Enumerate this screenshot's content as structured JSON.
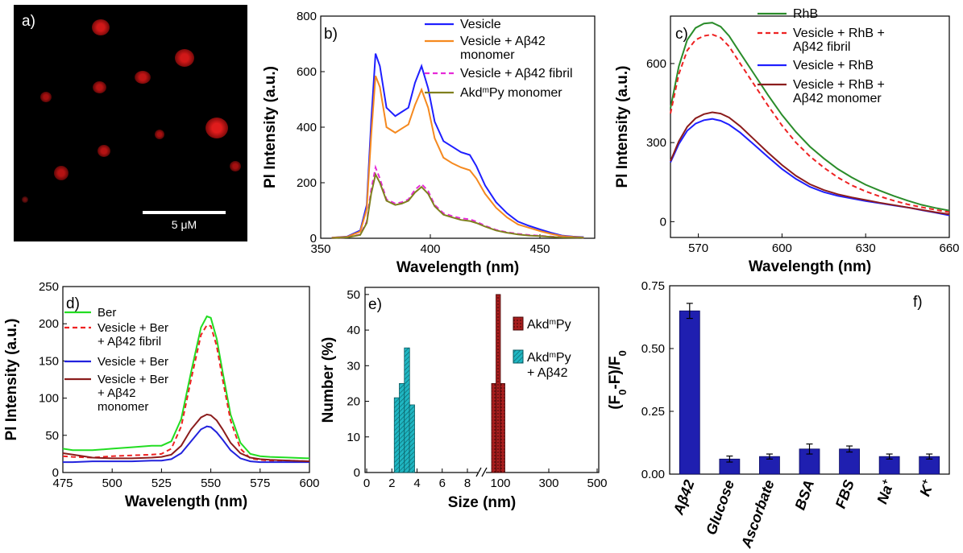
{
  "panel_a": {
    "label": "a)",
    "scalebar": "5 μM"
  },
  "chart_data": [
    {
      "type": "line",
      "panel_label": "b)",
      "xlabel": "Wavelength (nm)",
      "ylabel": "Pl Intensity (a.u.)",
      "xlim": [
        350,
        475
      ],
      "ylim": [
        0,
        800
      ],
      "xticks": [
        350,
        400,
        450
      ],
      "yticks": [
        0,
        200,
        400,
        600,
        800
      ],
      "legend": "top-right",
      "series": [
        {
          "name": "Vesicle",
          "color": "#1f1fff",
          "x": [
            355,
            362,
            368,
            371,
            373,
            375,
            377,
            380,
            384,
            387,
            390,
            393,
            396,
            399,
            402,
            406,
            410,
            414,
            418,
            421,
            425,
            430,
            435,
            440,
            445,
            450,
            455,
            460,
            465,
            470
          ],
          "y": [
            2,
            6,
            28,
            120,
            420,
            665,
            620,
            470,
            440,
            455,
            470,
            560,
            620,
            540,
            420,
            350,
            330,
            310,
            300,
            260,
            190,
            130,
            90,
            60,
            45,
            32,
            20,
            10,
            6,
            4
          ]
        },
        {
          "name": "Vesicle + Aβ42 monomer",
          "color": "#f5891f",
          "x": [
            355,
            362,
            368,
            371,
            373,
            375,
            377,
            380,
            384,
            387,
            390,
            393,
            396,
            399,
            402,
            406,
            410,
            414,
            418,
            421,
            425,
            430,
            435,
            440,
            445,
            450,
            455,
            460,
            465,
            470
          ],
          "y": [
            2,
            5,
            24,
            105,
            370,
            585,
            545,
            400,
            380,
            395,
            410,
            480,
            535,
            470,
            360,
            290,
            270,
            255,
            245,
            215,
            160,
            110,
            75,
            50,
            38,
            26,
            16,
            8,
            5,
            3
          ]
        },
        {
          "name": "Vesicle + Aβ42 fibril",
          "color": "#e62ad8",
          "x": [
            355,
            362,
            368,
            371,
            373,
            375,
            377,
            380,
            384,
            387,
            390,
            393,
            396,
            399,
            402,
            406,
            410,
            414,
            418,
            421,
            425,
            430,
            435,
            440,
            445,
            450,
            455,
            460,
            465,
            470
          ],
          "y": [
            1,
            3,
            14,
            60,
            175,
            255,
            215,
            140,
            125,
            130,
            140,
            175,
            195,
            170,
            120,
            90,
            80,
            72,
            68,
            60,
            45,
            30,
            22,
            16,
            12,
            9,
            6,
            4,
            3,
            2
          ]
        },
        {
          "name": "Akd<sup>m</sup>Py monomer",
          "color": "#7f7f1e",
          "x": [
            355,
            362,
            368,
            371,
            373,
            375,
            377,
            380,
            384,
            387,
            390,
            393,
            396,
            399,
            402,
            406,
            410,
            414,
            418,
            421,
            425,
            430,
            435,
            440,
            445,
            450,
            455,
            460,
            465,
            470
          ],
          "y": [
            1,
            3,
            12,
            55,
            160,
            230,
            200,
            135,
            120,
            125,
            135,
            165,
            185,
            160,
            115,
            85,
            75,
            66,
            62,
            55,
            42,
            28,
            20,
            14,
            10,
            8,
            5,
            3,
            2,
            2
          ]
        }
      ]
    },
    {
      "type": "line",
      "panel_label": "c)",
      "xlabel": "Wavelength (nm)",
      "ylabel": "Pl Intensity (a.u.)",
      "xlim": [
        560,
        660
      ],
      "ylim": [
        -60,
        780
      ],
      "xticks": [
        570,
        600,
        630,
        660
      ],
      "yticks": [
        0,
        300,
        600
      ],
      "legend": "top-right",
      "series": [
        {
          "name": "RhB",
          "color": "#2a8c2a",
          "x": [
            560,
            563,
            566,
            569,
            572,
            575,
            578,
            581,
            585,
            590,
            595,
            600,
            605,
            610,
            615,
            620,
            625,
            630,
            635,
            640,
            645,
            650,
            655,
            660
          ],
          "y": [
            430,
            590,
            690,
            735,
            752,
            755,
            740,
            705,
            640,
            560,
            480,
            405,
            340,
            285,
            240,
            200,
            168,
            140,
            118,
            98,
            80,
            64,
            52,
            42
          ]
        },
        {
          "name": "Vesicle + RhB + Aβ42 fibril",
          "color": "#ee2222",
          "x": [
            560,
            563,
            566,
            569,
            572,
            575,
            578,
            581,
            585,
            590,
            595,
            600,
            605,
            610,
            615,
            620,
            625,
            630,
            635,
            640,
            645,
            650,
            655,
            660
          ],
          "y": [
            410,
            560,
            650,
            690,
            705,
            710,
            698,
            665,
            600,
            520,
            440,
            365,
            300,
            248,
            205,
            168,
            138,
            115,
            96,
            80,
            66,
            55,
            45,
            36
          ]
        },
        {
          "name": "Vesicle + RhB",
          "color": "#1f1fff",
          "x": [
            560,
            563,
            566,
            569,
            572,
            575,
            578,
            581,
            585,
            590,
            595,
            600,
            605,
            610,
            615,
            620,
            625,
            630,
            635,
            640,
            645,
            650,
            655,
            660
          ],
          "y": [
            225,
            295,
            345,
            372,
            385,
            390,
            383,
            368,
            338,
            292,
            245,
            200,
            162,
            132,
            112,
            98,
            88,
            78,
            70,
            62,
            54,
            44,
            34,
            24
          ]
        },
        {
          "name": "Vesicle + RhB + Aβ42 monomer",
          "color": "#8b1c1c",
          "x": [
            560,
            563,
            566,
            569,
            572,
            575,
            578,
            581,
            585,
            590,
            595,
            600,
            605,
            610,
            615,
            620,
            625,
            630,
            635,
            640,
            645,
            650,
            655,
            660
          ],
          "y": [
            230,
            305,
            360,
            392,
            408,
            415,
            410,
            395,
            362,
            312,
            262,
            215,
            174,
            142,
            120,
            104,
            92,
            82,
            72,
            63,
            54,
            45,
            36,
            28
          ]
        }
      ]
    },
    {
      "type": "line",
      "panel_label": "d)",
      "xlabel": "Wavelength (nm)",
      "ylabel": "Pl Intensity (a.u.)",
      "xlim": [
        475,
        600
      ],
      "ylim": [
        0,
        250
      ],
      "xticks": [
        475,
        500,
        525,
        550,
        575,
        600
      ],
      "yticks": [
        0,
        50,
        100,
        150,
        200,
        250
      ],
      "legend": "top-left",
      "series": [
        {
          "name": "Ber",
          "color": "#22dd22",
          "x": [
            475,
            480,
            490,
            500,
            510,
            520,
            525,
            530,
            535,
            540,
            545,
            548,
            550,
            553,
            556,
            560,
            565,
            570,
            575,
            580,
            590,
            600
          ],
          "y": [
            32,
            30,
            30,
            32,
            34,
            36,
            36,
            42,
            72,
            135,
            195,
            210,
            208,
            180,
            135,
            78,
            40,
            25,
            22,
            21,
            20,
            19
          ]
        },
        {
          "name": "Vesicle + Ber + Aβ42 fibril",
          "color": "#ee2222",
          "x": [
            475,
            480,
            490,
            500,
            510,
            520,
            525,
            530,
            535,
            540,
            545,
            548,
            550,
            553,
            556,
            560,
            565,
            570,
            575,
            580,
            590,
            600
          ],
          "y": [
            22,
            21,
            20,
            22,
            23,
            24,
            25,
            32,
            62,
            125,
            185,
            198,
            197,
            170,
            125,
            70,
            32,
            19,
            17,
            16,
            16,
            15
          ]
        },
        {
          "name": "Vesicle + Ber",
          "color": "#2222dd",
          "x": [
            475,
            480,
            490,
            500,
            510,
            520,
            525,
            530,
            535,
            540,
            545,
            548,
            550,
            553,
            556,
            560,
            565,
            570,
            575,
            580,
            590,
            600
          ],
          "y": [
            14,
            14,
            15,
            15,
            15,
            16,
            16,
            18,
            26,
            42,
            58,
            62,
            61,
            54,
            44,
            30,
            19,
            15,
            14,
            14,
            14,
            14
          ]
        },
        {
          "name": "Vesicle + Ber + Aβ42 monomer",
          "color": "#8b1c1c",
          "x": [
            475,
            480,
            490,
            500,
            510,
            520,
            525,
            530,
            535,
            540,
            545,
            548,
            550,
            553,
            556,
            560,
            565,
            570,
            575,
            580,
            590,
            600
          ],
          "y": [
            26,
            24,
            20,
            19,
            19,
            20,
            21,
            24,
            36,
            58,
            74,
            78,
            77,
            70,
            58,
            40,
            26,
            20,
            18,
            17,
            16,
            15
          ]
        }
      ]
    },
    {
      "type": "bar",
      "panel_label": "e)",
      "xlabel": "Size (nm)",
      "ylabel": "Number (%)",
      "ylim": [
        0,
        52
      ],
      "yticks": [
        0,
        10,
        20,
        30,
        40,
        50
      ],
      "xticks": [
        "0",
        "2",
        "4",
        "6",
        "8",
        "100",
        "300",
        "500"
      ],
      "axis_break": "between 8 and 100",
      "legend": "top-right",
      "series": [
        {
          "name": "Akd<sup>m</sup>Py",
          "color": "#a81e1e",
          "x": [
            85,
            95,
            105
          ],
          "values": [
            25,
            50,
            25
          ]
        },
        {
          "name": "Akd<sup>m</sup>Py + Aβ42",
          "color": "#1fb6c2",
          "x": [
            2.4,
            2.8,
            3.2,
            3.6
          ],
          "values": [
            21,
            25,
            35,
            19
          ]
        }
      ]
    },
    {
      "type": "bar",
      "panel_label": "f)",
      "ylabel": "(F0-F)/F0",
      "ylim": [
        0,
        0.75
      ],
      "yticks": [
        "0.00",
        "0.25",
        "0.50",
        "0.75"
      ],
      "categories": [
        "Aβ42",
        "Glucose",
        "Ascorbate",
        "BSA",
        "FBS",
        "Na+",
        "K+"
      ],
      "values": [
        0.65,
        0.06,
        0.07,
        0.1,
        0.1,
        0.07,
        0.07
      ],
      "errors": [
        0.03,
        0.012,
        0.01,
        0.02,
        0.012,
        0.01,
        0.01
      ],
      "color": "#1f1fb0"
    }
  ]
}
